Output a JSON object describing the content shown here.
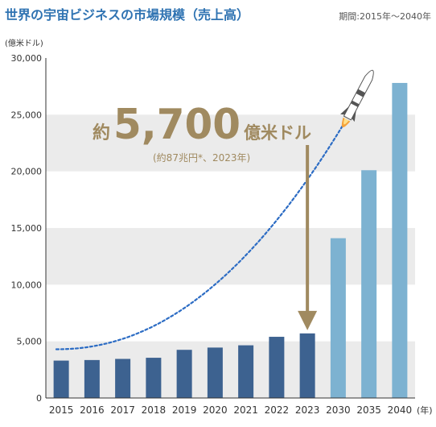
{
  "header": {
    "title": "世界の宇宙ビジネスの市場規模（売上高）",
    "period": "期間:2015年〜2040年"
  },
  "chart_data": {
    "type": "bar",
    "title": "世界の宇宙ビジネスの市場規模（売上高）",
    "ylabel": "(億米ドル)",
    "xunit": "(年)",
    "categories": [
      "2015",
      "2016",
      "2017",
      "2018",
      "2019",
      "2020",
      "2021",
      "2022",
      "2023",
      "2030",
      "2035",
      "2040"
    ],
    "values": [
      3300,
      3350,
      3450,
      3550,
      4250,
      4450,
      4650,
      5400,
      5700,
      14100,
      20100,
      27800
    ],
    "actual_count": 9,
    "yticks": [
      "0",
      "5,000",
      "10,000",
      "15,000",
      "20,000",
      "25,000",
      "30,000"
    ],
    "ylim": [
      0,
      30000
    ],
    "grid": "alternating horizontal bands",
    "colors": {
      "actual": "#3d6290",
      "forecast": "#7db2d1",
      "band": "#ebebeb",
      "trend": "#2c6cc4",
      "callout": "#a08a60",
      "header": "#2f73b2"
    },
    "trend_line": "dotted curve rising toward rocket",
    "callout": {
      "prefix": "約",
      "value": "5,700",
      "unit": "億米ドル",
      "note": "(約87兆円*、2023年)",
      "points_to": "2023"
    }
  }
}
